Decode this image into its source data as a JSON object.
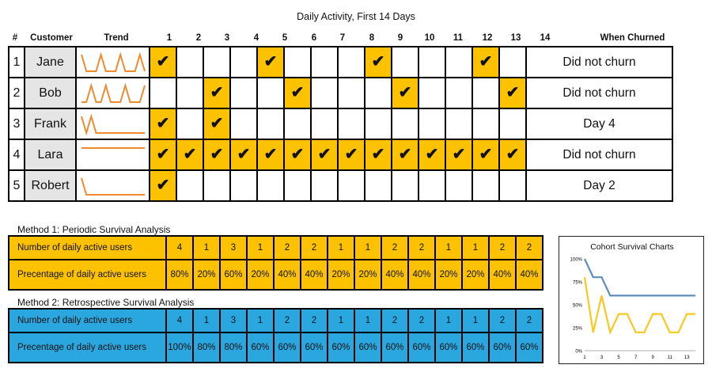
{
  "title": "Daily Activity, First 14 Days",
  "headers": {
    "index": "#",
    "customer": "Customer",
    "trend": "Trend",
    "days": [
      "1",
      "2",
      "3",
      "4",
      "5",
      "6",
      "7",
      "8",
      "9",
      "10",
      "11",
      "12",
      "13",
      "14"
    ],
    "churned": "When Churned"
  },
  "check_mark": "✔",
  "customers": [
    {
      "index": "1",
      "name": "Jane",
      "active": [
        1,
        0,
        0,
        0,
        1,
        0,
        0,
        0,
        1,
        0,
        0,
        0,
        1,
        0
      ],
      "churned": "Did not churn"
    },
    {
      "index": "2",
      "name": "Bob",
      "active": [
        0,
        0,
        1,
        0,
        0,
        1,
        0,
        0,
        0,
        1,
        0,
        0,
        0,
        1
      ],
      "churned": "Did not churn"
    },
    {
      "index": "3",
      "name": "Frank",
      "active": [
        1,
        0,
        1,
        0,
        0,
        0,
        0,
        0,
        0,
        0,
        0,
        0,
        0,
        0
      ],
      "churned": "Day 4"
    },
    {
      "index": "4",
      "name": "Lara",
      "active": [
        1,
        1,
        1,
        1,
        1,
        1,
        1,
        1,
        1,
        1,
        1,
        1,
        1,
        1
      ],
      "churned": "Did not churn"
    },
    {
      "index": "5",
      "name": "Robert",
      "active": [
        1,
        0,
        0,
        0,
        0,
        0,
        0,
        0,
        0,
        0,
        0,
        0,
        0,
        0
      ],
      "churned": "Day 2"
    }
  ],
  "method1": {
    "title": "Method 1: Periodic Survival Analysis",
    "rows": [
      {
        "label": "Number of daily active users",
        "values": [
          "4",
          "1",
          "3",
          "1",
          "2",
          "2",
          "1",
          "1",
          "2",
          "2",
          "1",
          "1",
          "2",
          "2"
        ]
      },
      {
        "label": "Precentage of daily active users",
        "values": [
          "80%",
          "20%",
          "60%",
          "20%",
          "40%",
          "40%",
          "20%",
          "20%",
          "40%",
          "40%",
          "20%",
          "20%",
          "40%",
          "40%"
        ]
      }
    ]
  },
  "method2": {
    "title": "Method 2: Retrospective Survival Analysis",
    "rows": [
      {
        "label": "Number of daily active users",
        "values": [
          "4",
          "1",
          "3",
          "1",
          "2",
          "2",
          "1",
          "1",
          "2",
          "2",
          "1",
          "1",
          "2",
          "2"
        ]
      },
      {
        "label": "Precentage of daily active users",
        "values": [
          "100%",
          "80%",
          "80%",
          "60%",
          "60%",
          "60%",
          "60%",
          "60%",
          "60%",
          "60%",
          "60%",
          "60%",
          "60%",
          "60%"
        ]
      }
    ]
  },
  "colors": {
    "active": "#fcc200",
    "method2": "#2ba7e0",
    "trend_line": "#f08a30",
    "name_cell": "#e5e5e5",
    "series_periodic": "#f8c81c",
    "series_retro": "#5b8fb9"
  },
  "chart_data": {
    "type": "line",
    "title": "Cohort Survival Charts",
    "x": [
      1,
      2,
      3,
      4,
      5,
      6,
      7,
      8,
      9,
      10,
      11,
      12,
      13,
      14
    ],
    "xticks": [
      "1",
      "3",
      "5",
      "7",
      "9",
      "11",
      "13"
    ],
    "yticks": [
      "100%",
      "75%",
      "50%",
      "25%",
      "0%"
    ],
    "ylim": [
      0,
      100
    ],
    "series": [
      {
        "values": [
          100,
          80,
          80,
          60,
          60,
          60,
          60,
          60,
          60,
          60,
          60,
          60,
          60,
          60
        ],
        "color": "#5b8fb9"
      },
      {
        "values": [
          80,
          20,
          60,
          20,
          40,
          40,
          20,
          20,
          40,
          40,
          20,
          20,
          40,
          40
        ],
        "color": "#f8c81c"
      }
    ]
  }
}
